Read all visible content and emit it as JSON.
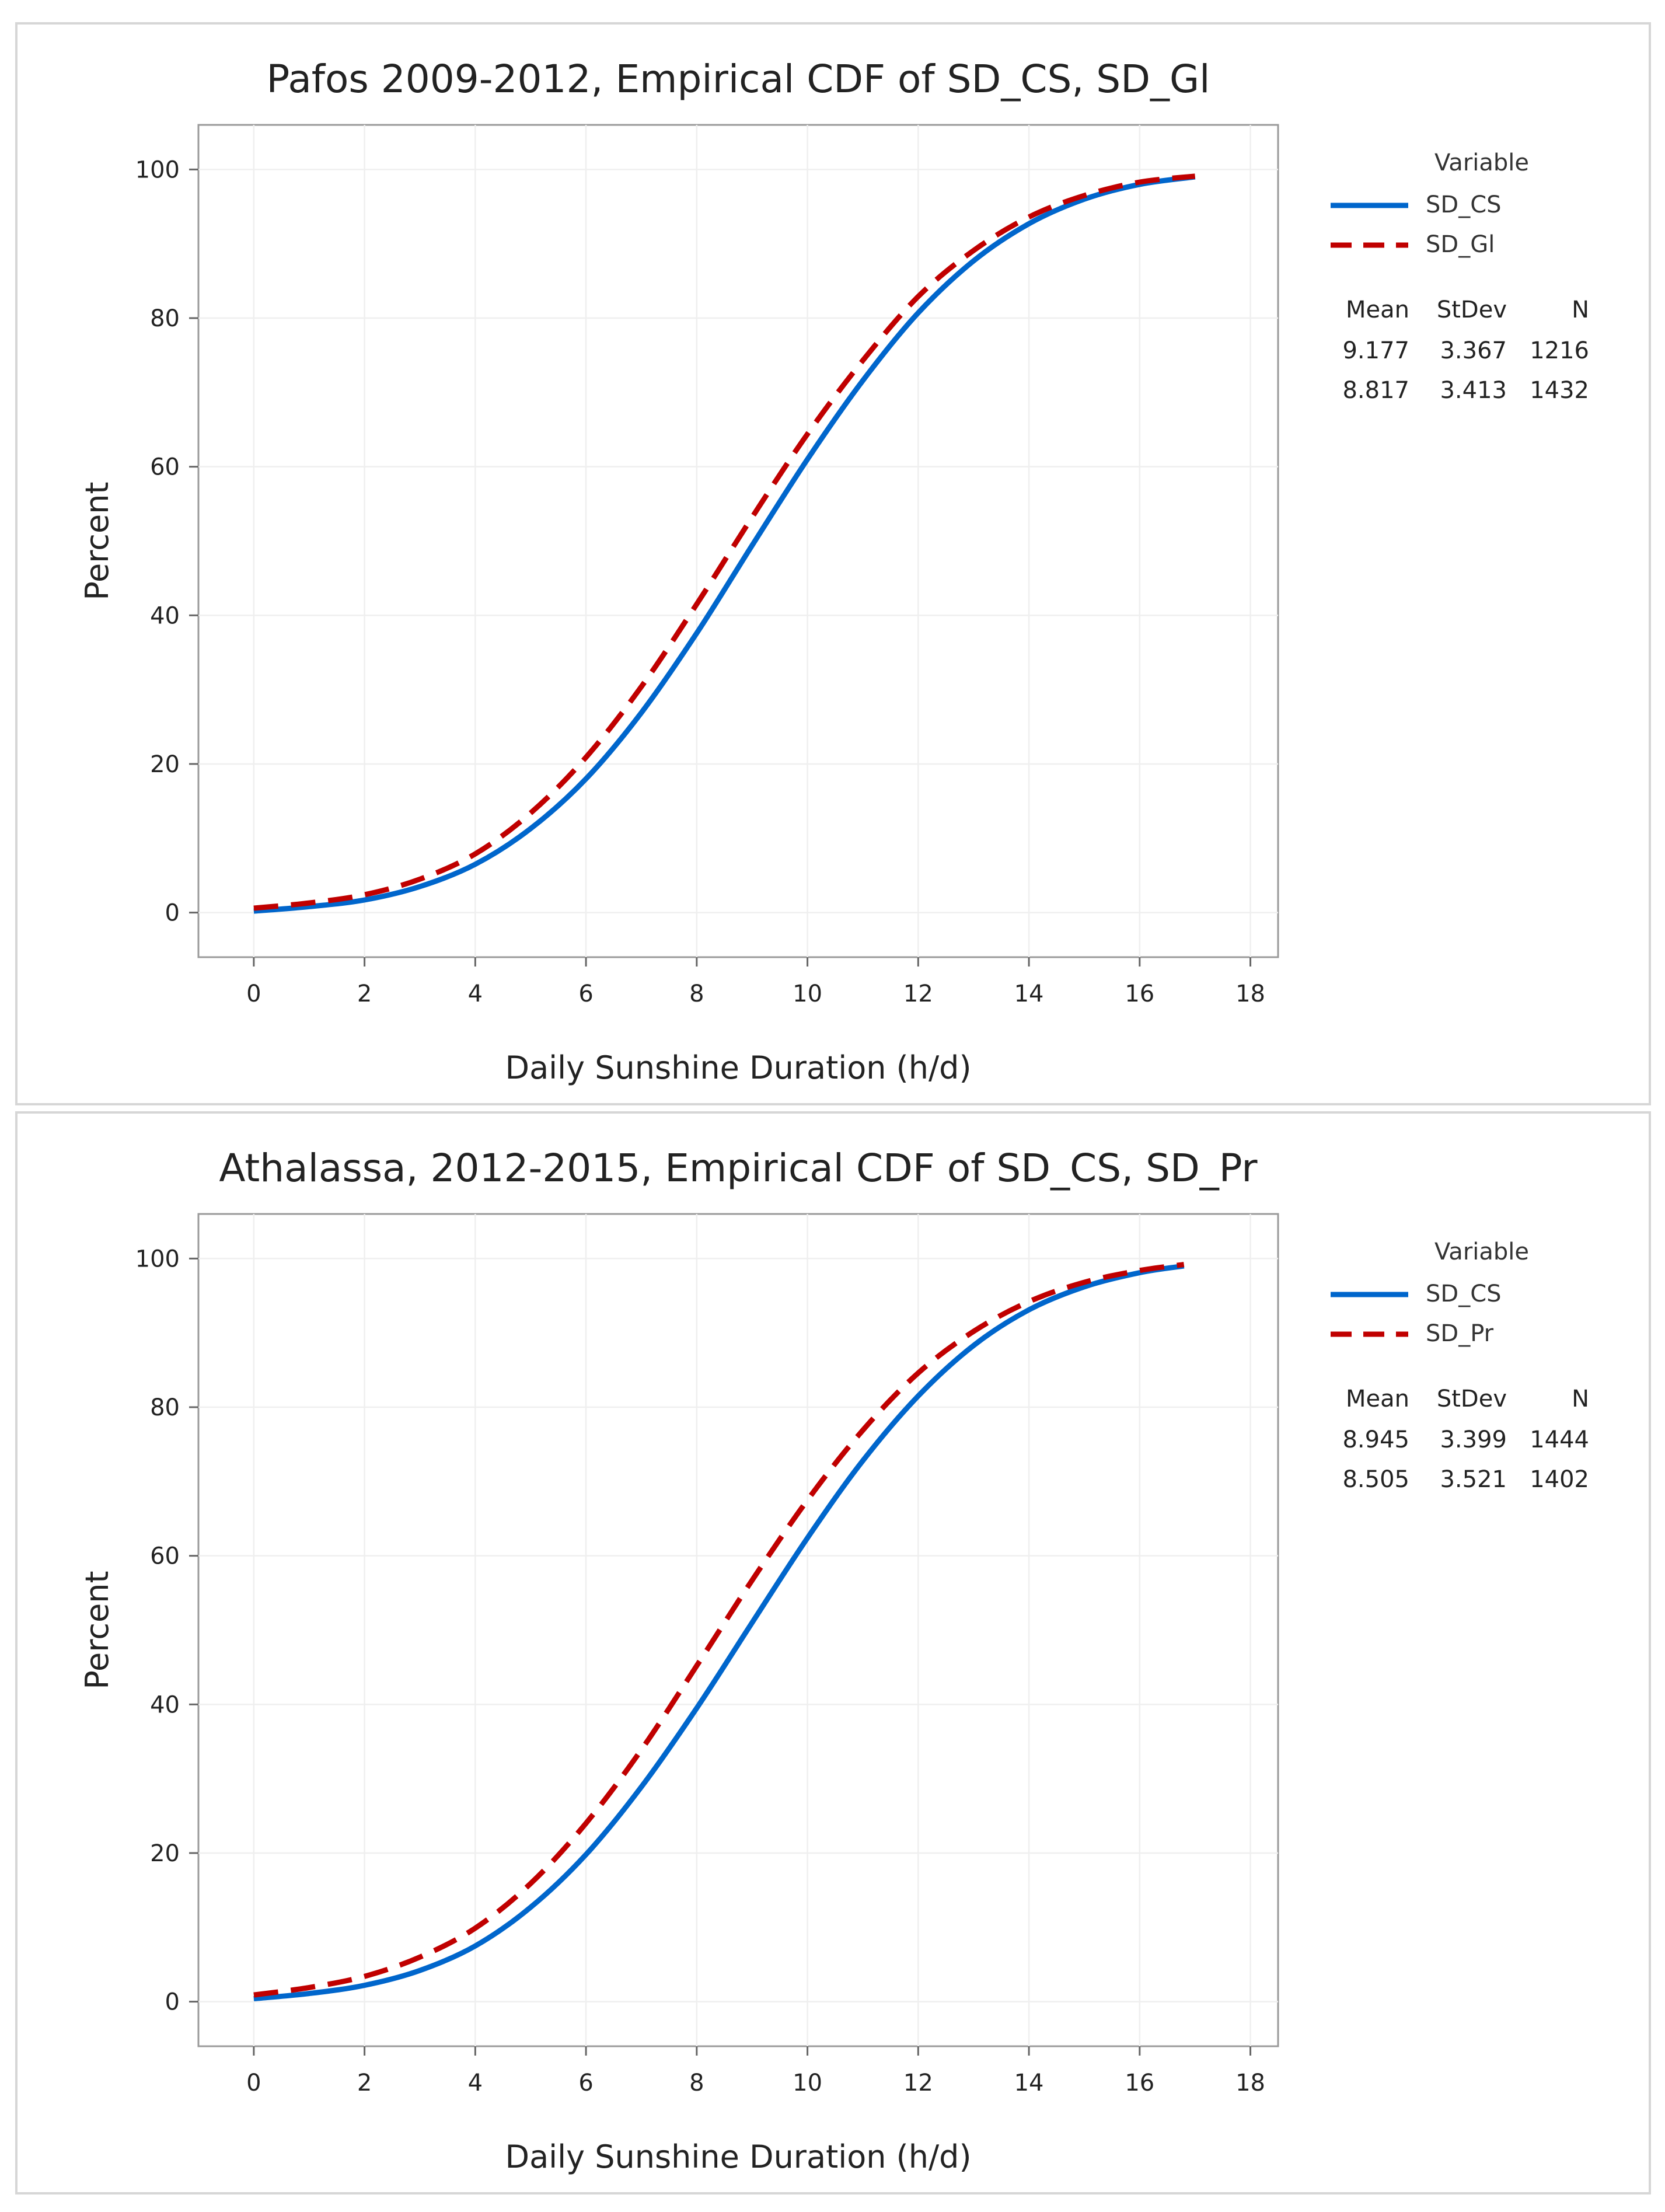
{
  "colors": {
    "sd_cs": "#0066CC",
    "dashed": "#C00000"
  },
  "chart_data": [
    {
      "type": "line",
      "title": "Pafos 2009-2012, Empirical CDF of SD_CS, SD_Gl",
      "xlabel": "Daily Sunshine Duration (h/d)",
      "ylabel": "Percent",
      "xlim": [
        -1,
        18.5
      ],
      "ylim": [
        -6,
        106
      ],
      "xticks": [
        0,
        2,
        4,
        6,
        8,
        10,
        12,
        14,
        16,
        18
      ],
      "yticks": [
        0,
        20,
        40,
        60,
        80,
        100
      ],
      "grid": true,
      "legend": {
        "title": "Variable",
        "placement": "right",
        "stats_headers": [
          "Mean",
          "StDev",
          "N"
        ]
      },
      "series": [
        {
          "name": "SD_CS",
          "style": "solid",
          "mean": "9.177",
          "stdev": "3.367",
          "n": "1216",
          "x": [
            0,
            1,
            2,
            3,
            4,
            5,
            6,
            7,
            8,
            9,
            10,
            11,
            12,
            13,
            14,
            15,
            16,
            17
          ],
          "y": [
            0.2,
            0.8,
            1.7,
            3.5,
            6.5,
            11.3,
            18.0,
            26.9,
            37.6,
            49.4,
            61.0,
            71.6,
            80.7,
            87.7,
            92.7,
            96.0,
            98.0,
            99.0
          ]
        },
        {
          "name": "SD_Gl",
          "style": "dashed",
          "mean": "8.817",
          "stdev": "3.413",
          "n": "1432",
          "x": [
            0,
            1,
            2,
            3,
            4,
            5,
            6,
            7,
            8,
            9,
            10,
            11,
            12,
            13,
            14,
            15,
            16,
            17
          ],
          "y": [
            0.6,
            1.3,
            2.4,
            4.5,
            7.9,
            13.4,
            20.9,
            30.4,
            41.5,
            53.2,
            64.4,
            74.3,
            82.9,
            89.1,
            93.6,
            96.5,
            98.3,
            99.1
          ]
        }
      ]
    },
    {
      "type": "line",
      "title": "Athalassa, 2012-2015, Empirical CDF of SD_CS, SD_Pr",
      "xlabel": "Daily Sunshine Duration (h/d)",
      "ylabel": "Percent",
      "xlim": [
        -1,
        18.5
      ],
      "ylim": [
        -6,
        106
      ],
      "xticks": [
        0,
        2,
        4,
        6,
        8,
        10,
        12,
        14,
        16,
        18
      ],
      "yticks": [
        0,
        20,
        40,
        60,
        80,
        100
      ],
      "grid": true,
      "legend": {
        "title": "Variable",
        "placement": "right",
        "stats_headers": [
          "Mean",
          "StDev",
          "N"
        ]
      },
      "series": [
        {
          "name": "SD_CS",
          "style": "solid",
          "mean": "8.945",
          "stdev": "3.399",
          "n": "1444",
          "x": [
            0,
            1,
            2,
            3,
            4,
            5,
            6,
            7,
            8,
            9,
            10,
            11,
            12,
            13,
            14,
            15,
            16,
            16.8
          ],
          "y": [
            0.4,
            1.1,
            2.2,
            4.2,
            7.5,
            12.7,
            19.8,
            28.9,
            39.5,
            51.0,
            62.4,
            72.8,
            81.5,
            88.3,
            93.1,
            96.2,
            98.1,
            99.0
          ]
        },
        {
          "name": "SD_Pr",
          "style": "dashed",
          "mean": "8.505",
          "stdev": "3.521",
          "n": "1402",
          "x": [
            0,
            1,
            2,
            3,
            4,
            5,
            6,
            7,
            8,
            9,
            10,
            11,
            12,
            13,
            14,
            15,
            16,
            16.8
          ],
          "y": [
            0.9,
            1.9,
            3.4,
            6.0,
            9.9,
            15.9,
            24.0,
            33.9,
            45.2,
            56.7,
            67.5,
            76.9,
            84.6,
            90.2,
            94.2,
            96.8,
            98.4,
            99.2
          ]
        }
      ]
    }
  ]
}
